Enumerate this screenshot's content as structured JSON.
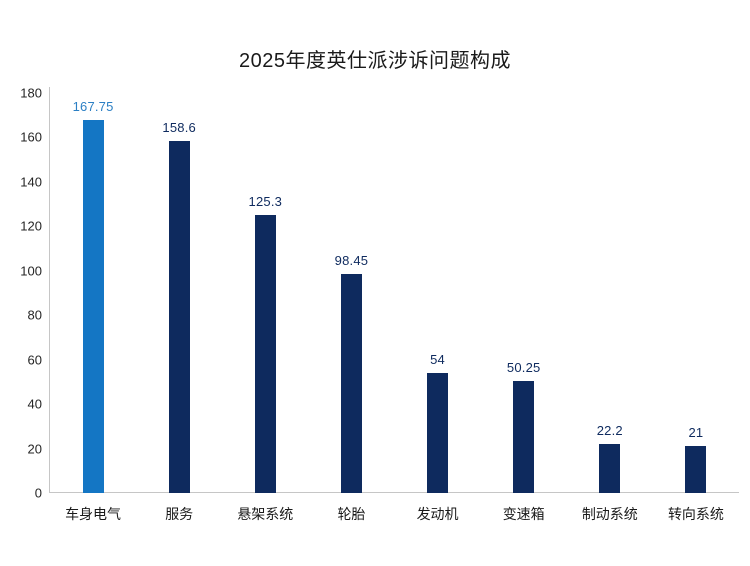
{
  "chart_data": {
    "type": "bar",
    "title": "2025年度英仕派涉诉问题构成",
    "categories": [
      "车身电气",
      "服务",
      "悬架系统",
      "轮胎",
      "发动机",
      "变速箱",
      "制动系统",
      "转向系统"
    ],
    "values": [
      167.75,
      158.6,
      125.3,
      98.45,
      54,
      50.25,
      22.2,
      21
    ],
    "value_labels": [
      "167.75",
      "158.6",
      "125.3",
      "98.45",
      "54",
      "50.25",
      "22.2",
      "21"
    ],
    "xlabel": "",
    "ylabel": "",
    "ylim": [
      0,
      180
    ],
    "yticks": [
      0,
      20,
      40,
      60,
      80,
      100,
      120,
      140,
      160,
      180
    ],
    "grid": false,
    "legend_position": "none",
    "highlight_index": 0,
    "colors": {
      "highlight_bar": "#1476C4",
      "bar": "#0E2A5E",
      "highlight_value_label": "#2B7FC4",
      "value_label": "#0E2A5E",
      "axis_line": "#C6C6C6",
      "text": "#1A1A1A"
    }
  }
}
